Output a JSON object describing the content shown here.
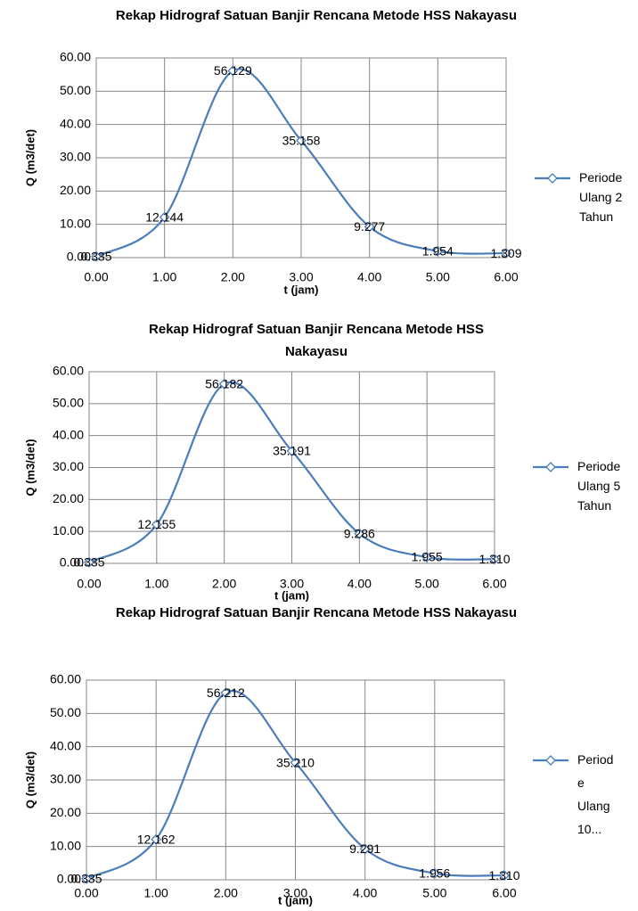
{
  "chart_data": [
    {
      "type": "line",
      "title": "Rekap Hidrograf Satuan Banjir Rencana Metode HSS Nakayasu",
      "x_label": "t (jam)",
      "y_label": "Q (m3/det)",
      "x": [
        0,
        1,
        2,
        3,
        4,
        5,
        6
      ],
      "series": [
        {
          "name": "Periode Ulang 2 Tahun",
          "color": "#4a7ebb",
          "values": [
            0.335,
            12.144,
            56.129,
            35.158,
            9.277,
            1.954,
            1.309
          ],
          "value_labels": [
            "0.335",
            "12.144",
            "56.129",
            "35.158",
            "9.277",
            "1.954",
            "1.309"
          ]
        }
      ],
      "xlim": [
        0,
        6
      ],
      "ylim": [
        0,
        60
      ],
      "xticks": [
        {
          "value": 0,
          "label": "0.00"
        },
        {
          "value": 1,
          "label": "1.00"
        },
        {
          "value": 2,
          "label": "2.00"
        },
        {
          "value": 3,
          "label": "3.00"
        },
        {
          "value": 4,
          "label": "4.00"
        },
        {
          "value": 5,
          "label": "5.00"
        },
        {
          "value": 6,
          "label": "6.00"
        }
      ],
      "yticks": [
        {
          "value": 0,
          "label": "0.00"
        },
        {
          "value": 10,
          "label": "10.00"
        },
        {
          "value": 20,
          "label": "20.00"
        },
        {
          "value": 30,
          "label": "30.00"
        },
        {
          "value": 40,
          "label": "40.00"
        },
        {
          "value": 50,
          "label": "50.00"
        },
        {
          "value": 60,
          "label": "60.00"
        }
      ],
      "grid": true,
      "legend": "right"
    },
    {
      "type": "line",
      "title": "Rekap Hidrograf Satuan Banjir Rencana Metode HSS Nakayasu",
      "x_label": "t (jam)",
      "y_label": "Q (m3/det)",
      "x": [
        0,
        1,
        2,
        3,
        4,
        5,
        6
      ],
      "series": [
        {
          "name": "Periode Ulang 5 Tahun",
          "color": "#4a7ebb",
          "values": [
            0.335,
            12.155,
            56.182,
            35.191,
            9.286,
            1.955,
            1.31
          ],
          "value_labels": [
            "0.335",
            "12.155",
            "56.182",
            "35.191",
            "9.286",
            "1.955",
            "1.310"
          ]
        }
      ],
      "xlim": [
        0,
        6
      ],
      "ylim": [
        0,
        60
      ],
      "xticks": [
        {
          "value": 0,
          "label": "0.00"
        },
        {
          "value": 1,
          "label": "1.00"
        },
        {
          "value": 2,
          "label": "2.00"
        },
        {
          "value": 3,
          "label": "3.00"
        },
        {
          "value": 4,
          "label": "4.00"
        },
        {
          "value": 5,
          "label": "5.00"
        },
        {
          "value": 6,
          "label": "6.00"
        }
      ],
      "yticks": [
        {
          "value": 0,
          "label": "0.00"
        },
        {
          "value": 10,
          "label": "10.00"
        },
        {
          "value": 20,
          "label": "20.00"
        },
        {
          "value": 30,
          "label": "30.00"
        },
        {
          "value": 40,
          "label": "40.00"
        },
        {
          "value": 50,
          "label": "50.00"
        },
        {
          "value": 60,
          "label": "60.00"
        }
      ],
      "grid": true,
      "legend": "right"
    },
    {
      "type": "line",
      "title": "Rekap Hidrograf Satuan Banjir Rencana Metode HSS Nakayasu",
      "x_label": "t (jam)",
      "y_label": "Q (m3/det)",
      "x": [
        0,
        1,
        2,
        3,
        4,
        5,
        6
      ],
      "series": [
        {
          "name": "Periode Ulang 10...",
          "color": "#4a7ebb",
          "values": [
            0.335,
            12.162,
            56.212,
            35.21,
            9.291,
            1.956,
            1.31
          ],
          "value_labels": [
            "0.335",
            "12.162",
            "56.212",
            "35.210",
            "9.291",
            "1.956",
            "1.310"
          ]
        }
      ],
      "xlim": [
        0,
        6
      ],
      "ylim": [
        0,
        60
      ],
      "xticks": [
        {
          "value": 0,
          "label": "0.00"
        },
        {
          "value": 1,
          "label": "1.00"
        },
        {
          "value": 2,
          "label": "2.00"
        },
        {
          "value": 3,
          "label": "3.00"
        },
        {
          "value": 4,
          "label": "4.00"
        },
        {
          "value": 5,
          "label": "5.00"
        },
        {
          "value": 6,
          "label": "6.00"
        }
      ],
      "yticks": [
        {
          "value": 0,
          "label": "0.00"
        },
        {
          "value": 10,
          "label": "10.00"
        },
        {
          "value": 20,
          "label": "20.00"
        },
        {
          "value": 30,
          "label": "30.00"
        },
        {
          "value": 40,
          "label": "40.00"
        },
        {
          "value": 50,
          "label": "50.00"
        },
        {
          "value": 60,
          "label": "60.00"
        }
      ],
      "grid": true,
      "legend": "right"
    }
  ]
}
